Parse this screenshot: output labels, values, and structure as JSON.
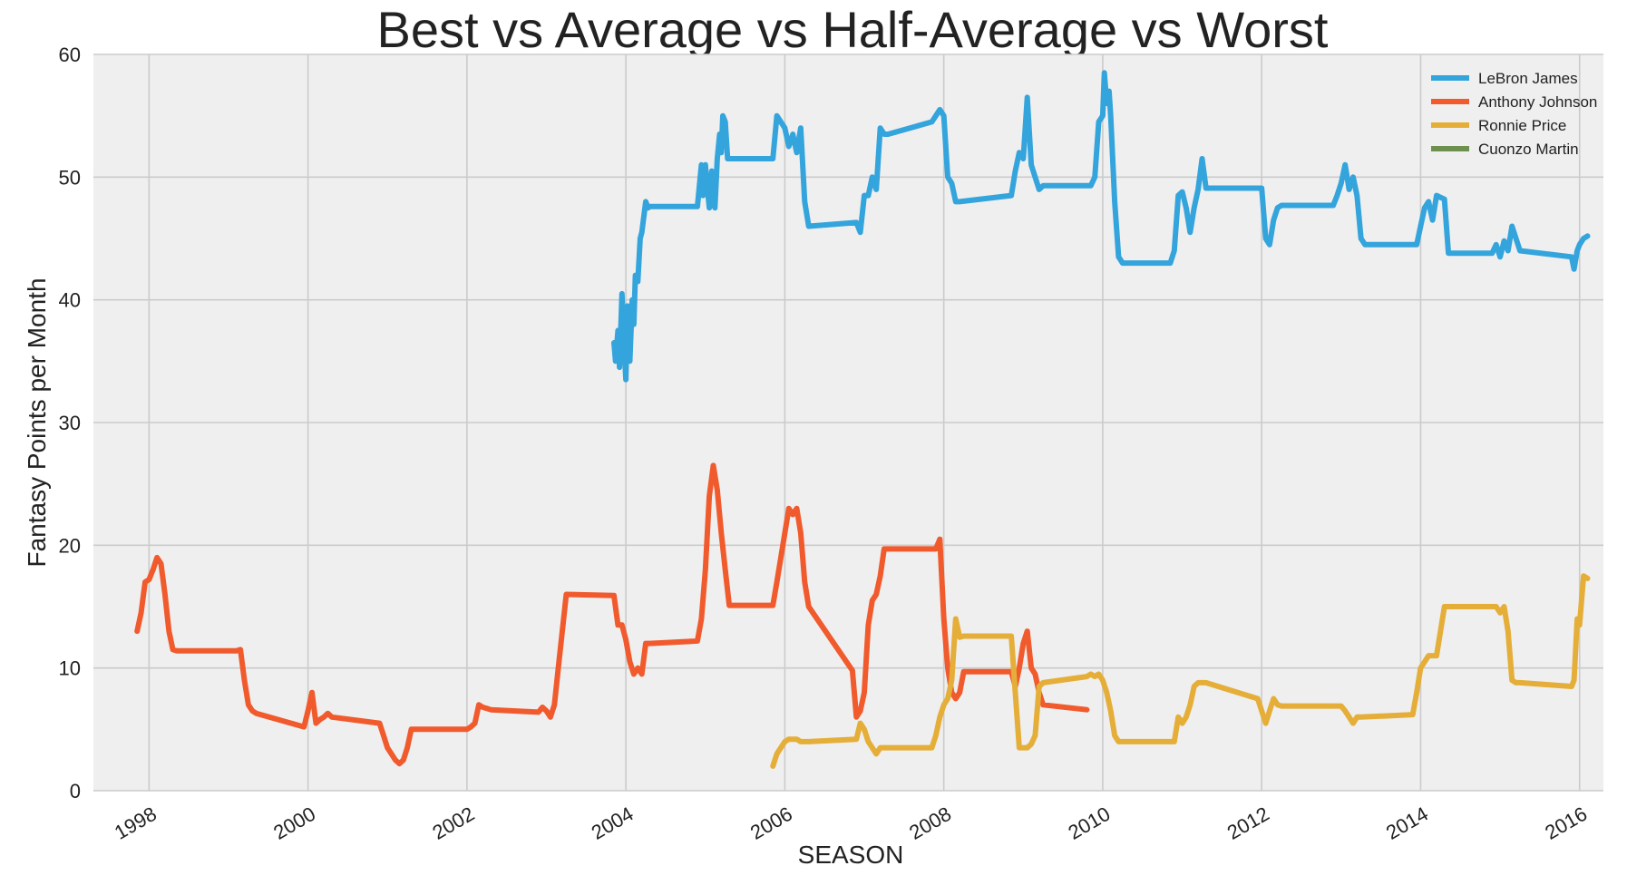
{
  "chart_data": {
    "type": "line",
    "title": "Best vs Average vs Half-Average vs Worst",
    "xlabel": "SEASON",
    "ylabel": "Fantasy Points per Month",
    "xlim": [
      1997.3,
      2016.3
    ],
    "ylim": [
      0,
      60
    ],
    "x_ticks": [
      1998,
      2000,
      2002,
      2004,
      2006,
      2008,
      2010,
      2012,
      2014,
      2016
    ],
    "x_tick_labels": [
      "1998",
      "2000",
      "2002",
      "2004",
      "2006",
      "2008",
      "2010",
      "2012",
      "2014",
      "2016"
    ],
    "y_ticks": [
      0,
      10,
      20,
      30,
      40,
      50,
      60
    ],
    "y_tick_labels": [
      "0",
      "10",
      "20",
      "30",
      "40",
      "50",
      "60"
    ],
    "grid": true,
    "legend_position": "top-right",
    "background": "#efefef",
    "series": [
      {
        "name": "LeBron James",
        "color": "#34a4dc",
        "x": [
          2003.85,
          2003.87,
          2003.9,
          2003.92,
          2003.95,
          2003.98,
          2004.0,
          2004.02,
          2004.05,
          2004.08,
          2004.1,
          2004.12,
          2004.15,
          2004.18,
          2004.2,
          2004.25,
          2004.28,
          2004.3,
          2004.32,
          2004.9,
          2004.92,
          2004.95,
          2004.97,
          2005.0,
          2005.02,
          2005.05,
          2005.08,
          2005.1,
          2005.12,
          2005.15,
          2005.18,
          2005.2,
          2005.22,
          2005.25,
          2005.28,
          2005.3,
          2005.85,
          2005.9,
          2006.0,
          2006.05,
          2006.1,
          2006.15,
          2006.2,
          2006.25,
          2006.3,
          2006.9,
          2006.95,
          2007.0,
          2007.05,
          2007.1,
          2007.15,
          2007.2,
          2007.25,
          2007.3,
          2007.85,
          2007.9,
          2007.95,
          2008.0,
          2008.05,
          2008.1,
          2008.15,
          2008.2,
          2008.85,
          2008.9,
          2008.95,
          2009.0,
          2009.05,
          2009.1,
          2009.15,
          2009.2,
          2009.25,
          2009.85,
          2009.9,
          2009.95,
          2010.0,
          2010.02,
          2010.05,
          2010.08,
          2010.1,
          2010.15,
          2010.2,
          2010.25,
          2010.85,
          2010.9,
          2010.95,
          2011.0,
          2011.05,
          2011.1,
          2011.15,
          2011.2,
          2011.25,
          2011.3,
          2011.95,
          2012.0,
          2012.05,
          2012.1,
          2012.15,
          2012.2,
          2012.25,
          2012.9,
          2012.95,
          2013.0,
          2013.05,
          2013.1,
          2013.15,
          2013.2,
          2013.25,
          2013.3,
          2013.9,
          2013.95,
          2014.0,
          2014.05,
          2014.1,
          2014.15,
          2014.2,
          2014.3,
          2014.35,
          2014.9,
          2014.95,
          2015.0,
          2015.05,
          2015.1,
          2015.15,
          2015.2,
          2015.25,
          2015.9,
          2015.93,
          2015.97,
          2016.0,
          2016.05,
          2016.1
        ],
        "y": [
          36.5,
          35.0,
          37.5,
          34.5,
          40.5,
          36.0,
          33.5,
          39.5,
          35.0,
          40.0,
          38.0,
          42.0,
          41.5,
          45.0,
          45.5,
          48.0,
          47.5,
          47.6,
          47.6,
          47.6,
          49.0,
          51.0,
          48.5,
          51.0,
          49.5,
          47.5,
          50.5,
          48.0,
          47.5,
          51.5,
          53.5,
          52.0,
          55.0,
          54.5,
          51.5,
          51.5,
          51.5,
          55.0,
          54.0,
          52.5,
          53.5,
          52.0,
          54.0,
          48.0,
          46.0,
          46.3,
          45.5,
          48.5,
          48.5,
          50.0,
          49.0,
          54.0,
          53.5,
          53.5,
          54.5,
          55.0,
          55.5,
          55.0,
          50.0,
          49.5,
          48.0,
          48.0,
          48.5,
          50.5,
          52.0,
          51.5,
          56.5,
          51.0,
          50.0,
          49.0,
          49.3,
          49.3,
          50.0,
          54.5,
          55.0,
          58.5,
          56.0,
          57.0,
          55.0,
          48.0,
          43.5,
          43.0,
          43.0,
          44.0,
          48.5,
          48.8,
          47.5,
          45.5,
          47.5,
          49.0,
          51.5,
          49.1,
          49.1,
          49.1,
          45.0,
          44.5,
          46.5,
          47.5,
          47.7,
          47.7,
          48.5,
          49.5,
          51.0,
          49.0,
          50.0,
          48.5,
          45.0,
          44.5,
          44.5,
          44.5,
          46.0,
          47.5,
          48.0,
          46.5,
          48.5,
          48.2,
          43.8,
          43.8,
          44.5,
          43.5,
          44.8,
          44.0,
          46.0,
          45.0,
          44.0,
          43.5,
          42.5,
          44.0,
          44.5,
          45.0,
          45.2
        ]
      },
      {
        "name": "Anthony Johnson",
        "color": "#f05a2c",
        "x": [
          1997.85,
          1997.9,
          1997.95,
          1998.0,
          1998.05,
          1998.1,
          1998.15,
          1998.2,
          1998.25,
          1998.3,
          1998.35,
          1999.1,
          1999.15,
          1999.2,
          1999.25,
          1999.3,
          1999.35,
          1999.95,
          2000.0,
          2000.05,
          2000.1,
          2000.15,
          2000.2,
          2000.25,
          2000.3,
          2000.9,
          2000.95,
          2001.0,
          2001.05,
          2001.1,
          2001.15,
          2001.2,
          2001.25,
          2001.3,
          2002.0,
          2002.05,
          2002.1,
          2002.15,
          2002.2,
          2002.25,
          2002.3,
          2002.9,
          2002.95,
          2003.0,
          2003.05,
          2003.1,
          2003.15,
          2003.2,
          2003.25,
          2003.85,
          2003.9,
          2003.95,
          2004.0,
          2004.05,
          2004.1,
          2004.15,
          2004.2,
          2004.25,
          2004.3,
          2004.9,
          2004.95,
          2005.0,
          2005.05,
          2005.1,
          2005.15,
          2005.2,
          2005.25,
          2005.3,
          2005.85,
          2005.9,
          2005.95,
          2006.0,
          2006.05,
          2006.1,
          2006.15,
          2006.2,
          2006.25,
          2006.3,
          2006.85,
          2006.9,
          2006.95,
          2007.0,
          2007.05,
          2007.1,
          2007.15,
          2007.2,
          2007.25,
          2007.3,
          2007.9,
          2007.95,
          2008.0,
          2008.05,
          2008.1,
          2008.15,
          2008.2,
          2008.25,
          2008.3,
          2008.85,
          2008.9,
          2008.95,
          2009.0,
          2009.05,
          2009.1,
          2009.15,
          2009.2,
          2009.25,
          2009.8
        ],
        "y": [
          13.0,
          14.5,
          17.0,
          17.2,
          18.0,
          19.0,
          18.5,
          16.0,
          13.0,
          11.5,
          11.4,
          11.4,
          11.5,
          9.0,
          7.0,
          6.5,
          6.3,
          5.2,
          6.5,
          8.0,
          5.5,
          5.8,
          6.0,
          6.3,
          6.0,
          5.5,
          4.5,
          3.5,
          3.0,
          2.5,
          2.2,
          2.5,
          3.5,
          5.0,
          5.0,
          5.2,
          5.5,
          7.0,
          6.8,
          6.7,
          6.6,
          6.4,
          6.8,
          6.5,
          6.0,
          7.0,
          10.0,
          13.0,
          16.0,
          15.9,
          13.5,
          13.5,
          12.3,
          10.5,
          9.5,
          10.0,
          9.5,
          12.0,
          12.0,
          12.2,
          14.0,
          18.0,
          24.0,
          26.5,
          24.5,
          21.0,
          18.0,
          15.1,
          15.1,
          17.0,
          19.0,
          21.0,
          23.0,
          22.5,
          23.0,
          21.0,
          17.0,
          15.0,
          9.8,
          6.0,
          6.5,
          8.0,
          13.5,
          15.5,
          16.0,
          17.5,
          19.7,
          19.7,
          19.7,
          20.5,
          14.0,
          10.0,
          8.0,
          7.5,
          8.0,
          9.7,
          9.7,
          9.7,
          8.5,
          10.0,
          12.0,
          13.0,
          10.0,
          9.5,
          8.0,
          7.0,
          6.6
        ]
      },
      {
        "name": "Ronnie Price",
        "color": "#e5ae38",
        "x": [
          2005.85,
          2005.9,
          2005.95,
          2006.0,
          2006.05,
          2006.1,
          2006.15,
          2006.2,
          2006.25,
          2006.3,
          2006.9,
          2006.95,
          2007.0,
          2007.05,
          2007.1,
          2007.15,
          2007.2,
          2007.25,
          2007.3,
          2007.85,
          2007.9,
          2007.95,
          2008.0,
          2008.05,
          2008.1,
          2008.15,
          2008.2,
          2008.25,
          2008.3,
          2008.85,
          2008.9,
          2008.95,
          2009.0,
          2009.05,
          2009.1,
          2009.15,
          2009.2,
          2009.25,
          2009.8,
          2009.85,
          2009.9,
          2009.95,
          2010.0,
          2010.05,
          2010.1,
          2010.15,
          2010.2,
          2010.25,
          2010.85,
          2010.9,
          2010.95,
          2011.0,
          2011.05,
          2011.1,
          2011.15,
          2011.2,
          2011.25,
          2011.3,
          2011.95,
          2012.0,
          2012.05,
          2012.1,
          2012.15,
          2012.2,
          2012.25,
          2012.9,
          2012.95,
          2013.0,
          2013.05,
          2013.1,
          2013.15,
          2013.2,
          2013.25,
          2013.9,
          2013.95,
          2014.0,
          2014.05,
          2014.1,
          2014.15,
          2014.2,
          2014.3,
          2014.35,
          2014.9,
          2014.95,
          2015.0,
          2015.05,
          2015.1,
          2015.15,
          2015.2,
          2015.25,
          2015.9,
          2015.93,
          2015.97,
          2016.0,
          2016.05,
          2016.1
        ],
        "y": [
          2.0,
          3.0,
          3.5,
          4.0,
          4.2,
          4.2,
          4.2,
          4.0,
          4.0,
          4.0,
          4.2,
          5.5,
          5.0,
          4.0,
          3.5,
          3.0,
          3.5,
          3.5,
          3.5,
          3.5,
          4.5,
          6.0,
          7.0,
          7.5,
          9.0,
          14.0,
          12.5,
          12.6,
          12.6,
          12.6,
          8.0,
          3.5,
          3.5,
          3.5,
          3.8,
          4.5,
          8.5,
          8.8,
          9.3,
          9.5,
          9.3,
          9.5,
          9.0,
          8.0,
          6.5,
          4.5,
          4.0,
          4.0,
          4.0,
          4.0,
          6.0,
          5.5,
          6.0,
          7.0,
          8.5,
          8.8,
          8.8,
          8.8,
          7.5,
          6.5,
          5.5,
          6.5,
          7.5,
          7.0,
          6.9,
          6.9,
          6.9,
          6.9,
          6.5,
          6.0,
          5.5,
          6.0,
          6.0,
          6.2,
          8.0,
          10.0,
          10.5,
          11.0,
          11.0,
          11.0,
          15.0,
          15.0,
          15.0,
          15.0,
          14.5,
          15.0,
          13.0,
          9.0,
          8.8,
          8.8,
          8.5,
          9.0,
          14.0,
          13.5,
          17.5,
          17.3
        ]
      },
      {
        "name": "Cuonzo Martin",
        "color": "#6d904f",
        "x": [],
        "y": []
      }
    ]
  }
}
